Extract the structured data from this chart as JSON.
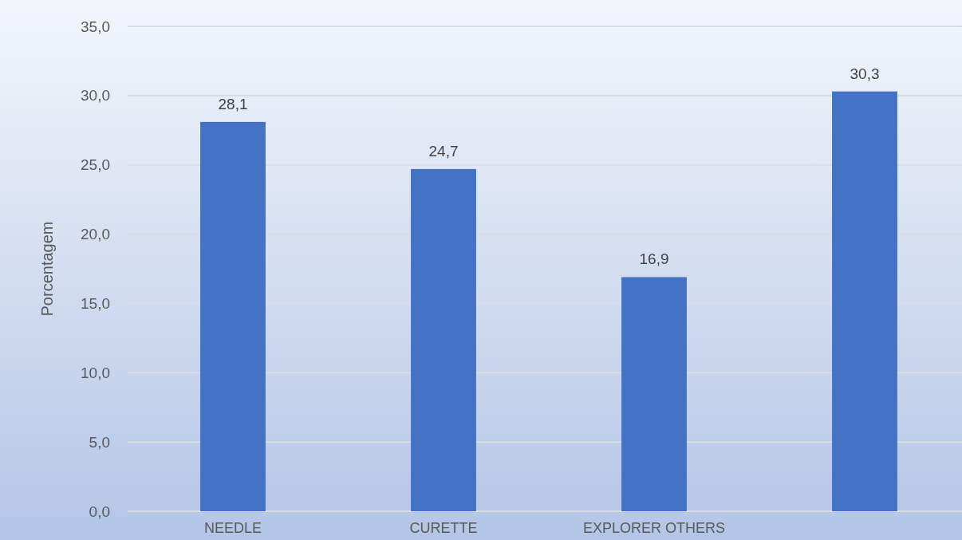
{
  "chart_data": {
    "type": "bar",
    "ylabel": "Porcentagem",
    "categories": [
      "NEEDLE",
      "CURETTE",
      "EXPLORER OTHERS",
      null
    ],
    "values": [
      28.1,
      24.7,
      16.9,
      30.3
    ],
    "value_labels": [
      "28,1",
      "24,7",
      "16,9",
      "30,3"
    ],
    "color": "#4472c4",
    "ylim": [
      0,
      35
    ],
    "yticks": [
      {
        "value": 0,
        "label": "0,0"
      },
      {
        "value": 5,
        "label": "5,0"
      },
      {
        "value": 10,
        "label": "10,0"
      },
      {
        "value": 15,
        "label": "15,0"
      },
      {
        "value": 20,
        "label": "20,0"
      },
      {
        "value": 25,
        "label": "25,0"
      },
      {
        "value": 30,
        "label": "30,0"
      },
      {
        "value": 35,
        "label": "35,0"
      }
    ],
    "grid": "y"
  }
}
